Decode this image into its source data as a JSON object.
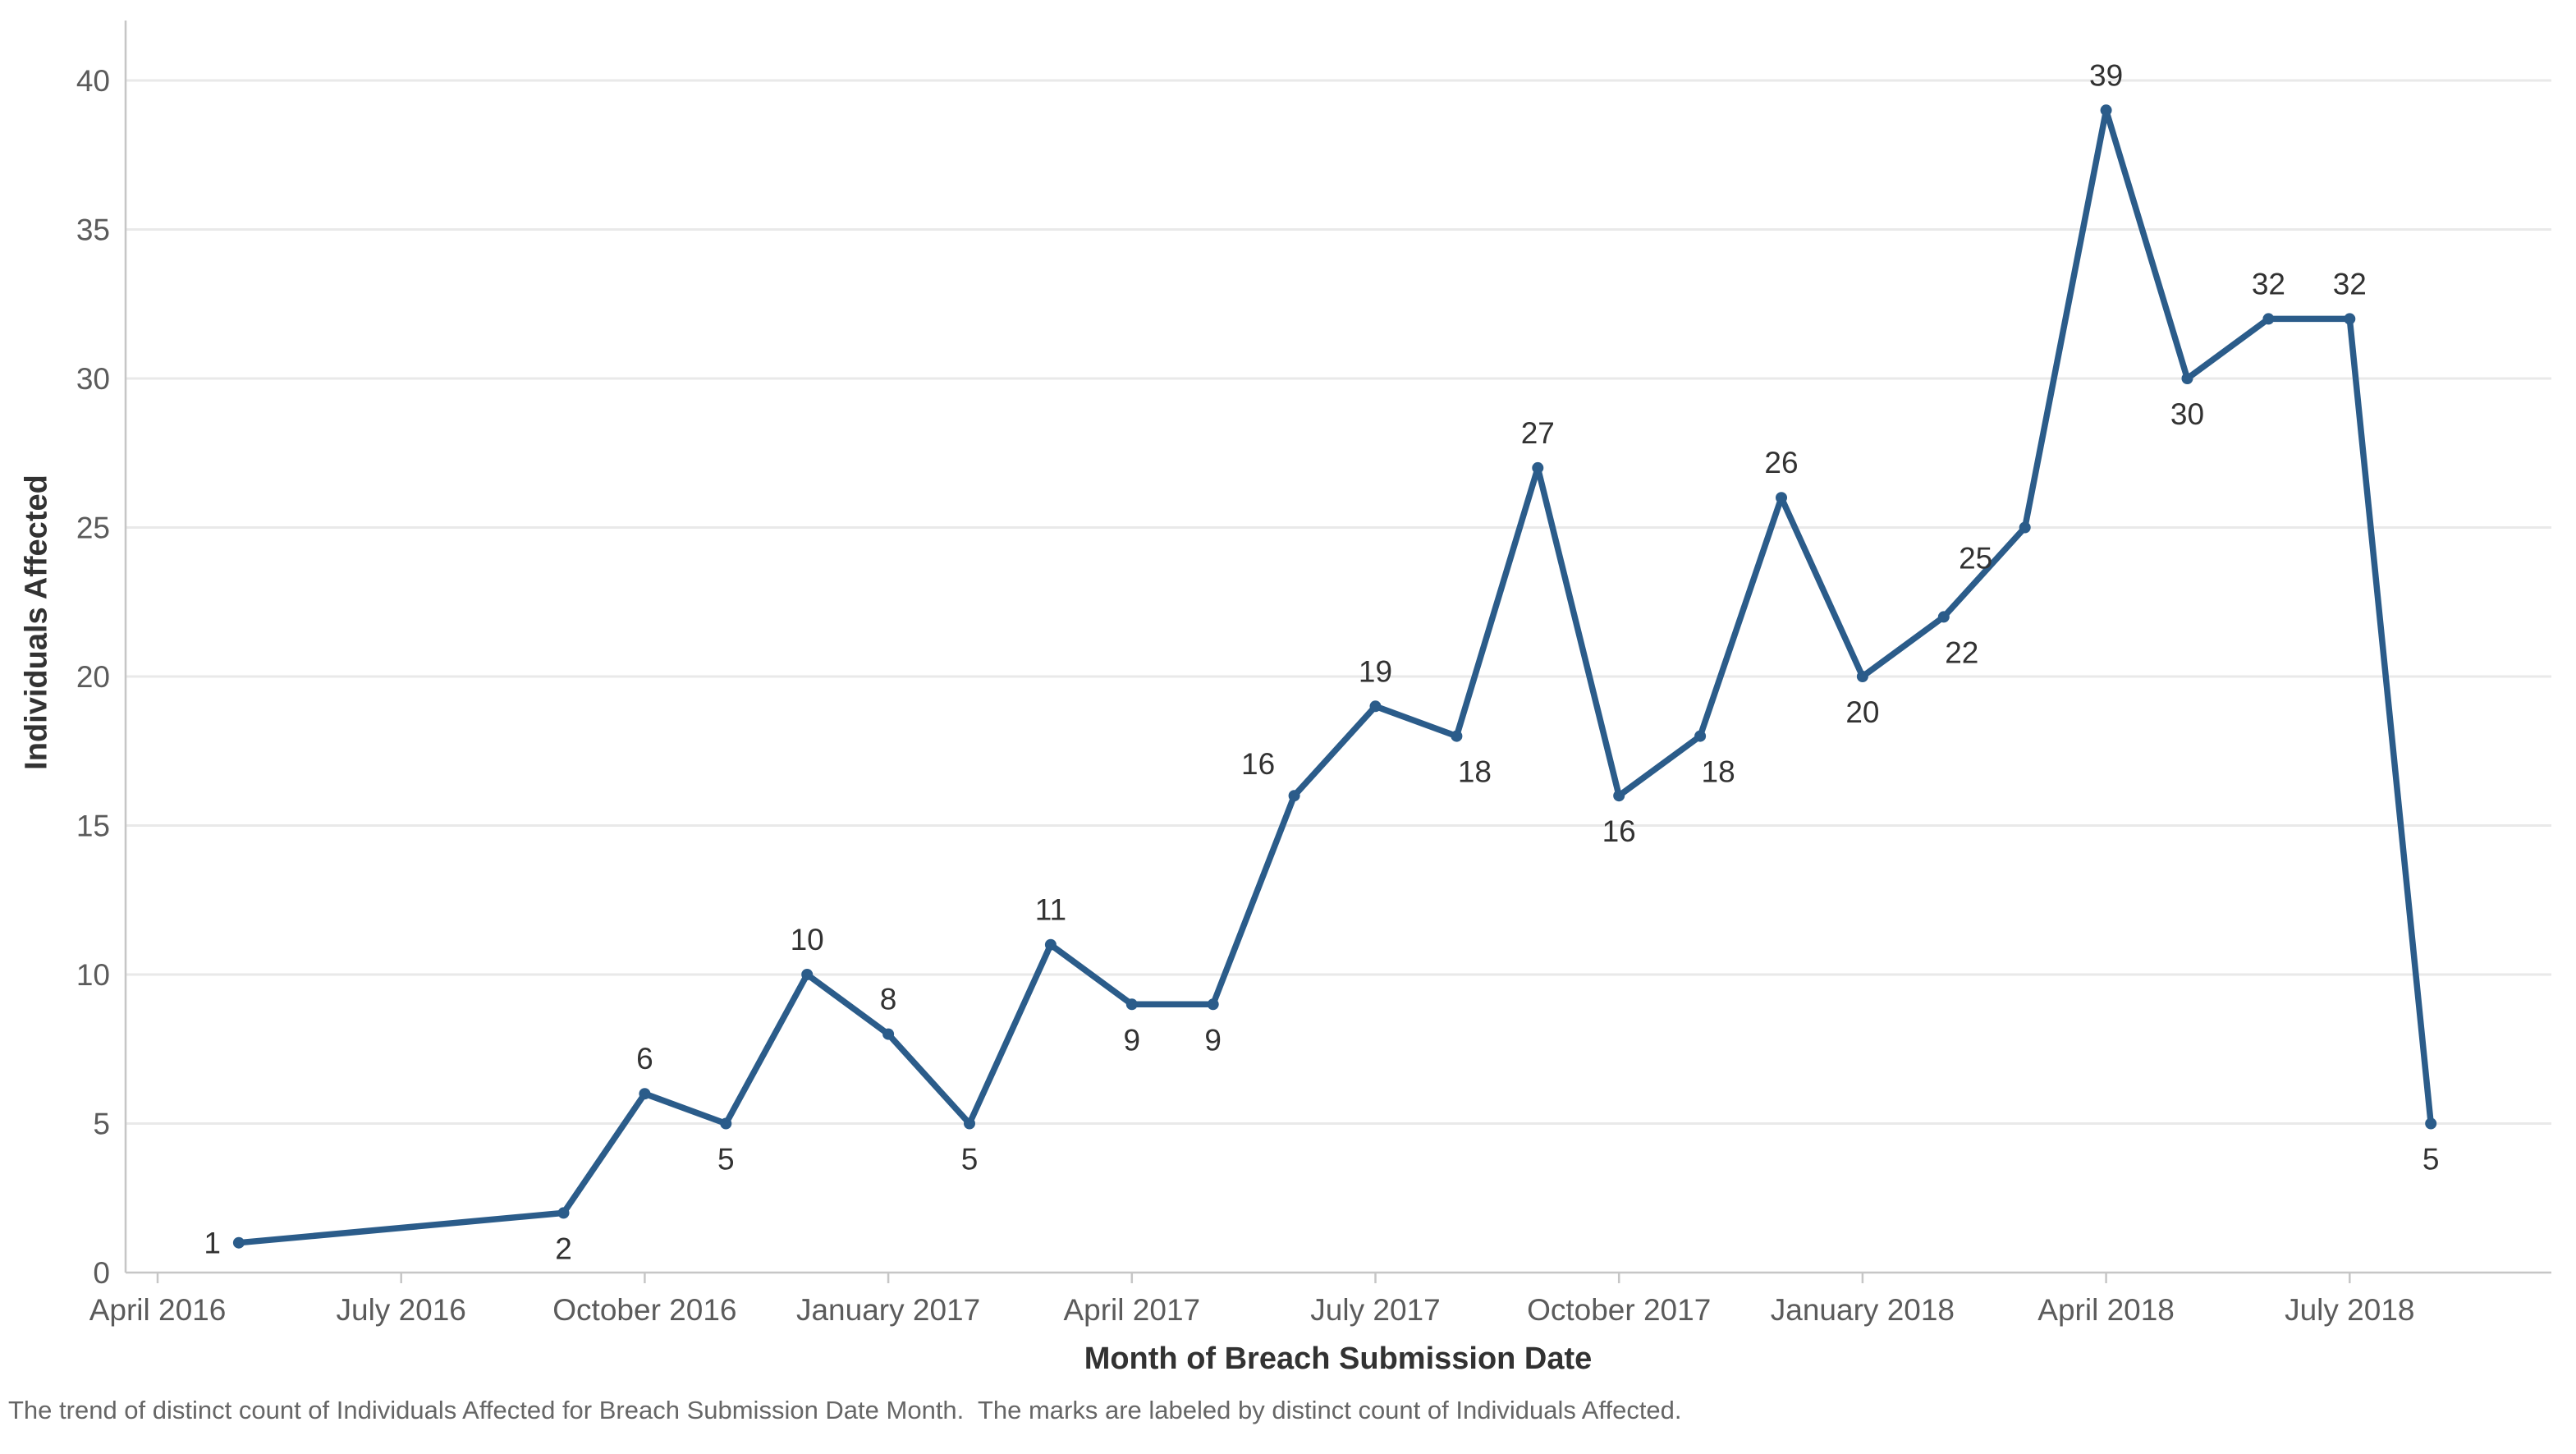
{
  "chart_data": {
    "type": "line",
    "title": "",
    "xlabel": "Month of Breach Submission Date",
    "ylabel": "Individuals Affected",
    "caption": "The trend of distinct count of Individuals Affected for Breach Submission Date Month.  The marks are labeled by distinct count of Individuals Affected.",
    "series_name": "Distinct count of Individuals Affected",
    "x_tick_labels": [
      "April 2016",
      "July 2016",
      "October 2016",
      "January 2017",
      "April 2017",
      "July 2017",
      "October 2017",
      "January 2018",
      "April 2018",
      "July 2018"
    ],
    "y_ticks": [
      0,
      5,
      10,
      15,
      20,
      25,
      30,
      35,
      40
    ],
    "ylim": [
      0,
      42
    ],
    "grid": "horizontal-only",
    "legend": "none",
    "points": [
      {
        "month": "May 2016",
        "value": 1,
        "label_pos": "left"
      },
      {
        "month": "September 2016",
        "value": 2,
        "label_pos": "below"
      },
      {
        "month": "October 2016",
        "value": 6,
        "label_pos": "above"
      },
      {
        "month": "November 2016",
        "value": 5,
        "label_pos": "below"
      },
      {
        "month": "December 2016",
        "value": 10,
        "label_pos": "above"
      },
      {
        "month": "January 2017",
        "value": 8,
        "label_pos": "above"
      },
      {
        "month": "February 2017",
        "value": 5,
        "label_pos": "below"
      },
      {
        "month": "March 2017",
        "value": 11,
        "label_pos": "above"
      },
      {
        "month": "April 2017",
        "value": 9,
        "label_pos": "below"
      },
      {
        "month": "May 2017",
        "value": 9,
        "label_pos": "below"
      },
      {
        "month": "June 2017",
        "value": 16,
        "label_pos": "above-left"
      },
      {
        "month": "July 2017",
        "value": 19,
        "label_pos": "above"
      },
      {
        "month": "August 2017",
        "value": 18,
        "label_pos": "below-right"
      },
      {
        "month": "September 2017",
        "value": 27,
        "label_pos": "above"
      },
      {
        "month": "October 2017",
        "value": 16,
        "label_pos": "below"
      },
      {
        "month": "November 2017",
        "value": 18,
        "label_pos": "below-right"
      },
      {
        "month": "December 2017",
        "value": 26,
        "label_pos": "above"
      },
      {
        "month": "January 2018",
        "value": 20,
        "label_pos": "below"
      },
      {
        "month": "February 2018",
        "value": 22,
        "label_pos": "below-right"
      },
      {
        "month": "March 2018",
        "value": 25,
        "label_pos": "below-left"
      },
      {
        "month": "April 2018",
        "value": 39,
        "label_pos": "above"
      },
      {
        "month": "May 2018",
        "value": 30,
        "label_pos": "below"
      },
      {
        "month": "June 2018",
        "value": 32,
        "label_pos": "above"
      },
      {
        "month": "July 2018",
        "value": 32,
        "label_pos": "above"
      },
      {
        "month": "August 2018",
        "value": 5,
        "label_pos": "below"
      }
    ],
    "colors": {
      "line": "#2b5c8a",
      "marker": "#2b5c8a",
      "gridline": "#e9e9e9",
      "axis_line": "#c6c6c6",
      "tick_mark": "#c6c6c6",
      "tick_label": "#5b5b5b",
      "data_label": "#323232",
      "axis_title": "#323232",
      "caption": "#666666",
      "background": "#ffffff"
    }
  }
}
